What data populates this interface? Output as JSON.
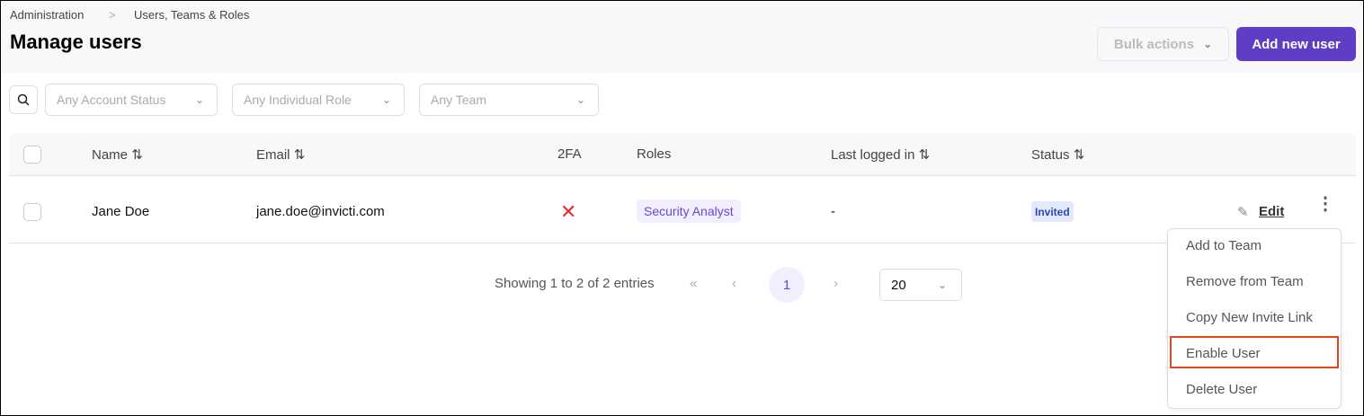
{
  "breadcrumb": {
    "items": [
      "Administration",
      "Users, Teams & Roles"
    ],
    "separator": ">"
  },
  "header": {
    "title": "Manage users",
    "bulk_actions": "Bulk actions",
    "add_user": "Add new user"
  },
  "filters": [
    {
      "placeholder": "Any Account Status"
    },
    {
      "placeholder": "Any Individual Role"
    },
    {
      "placeholder": "Any Team"
    }
  ],
  "table": {
    "columns": [
      "Name",
      "Email",
      "2FA",
      "Roles",
      "Last logged in",
      "Status"
    ],
    "rows": [
      {
        "name": "Jane Doe",
        "email": "jane.doe@invicti.com",
        "twofa": "✕",
        "role": "Security Analyst",
        "last_logged_in": "-",
        "status": "Invited",
        "edit": "Edit"
      }
    ]
  },
  "menu": {
    "items": [
      "Add to Team",
      "Remove from Team",
      "Copy New Invite Link",
      "Enable User",
      "Delete User"
    ],
    "highlighted": "Enable User"
  },
  "pagination": {
    "summary": "Showing 1 to 2 of 2 entries",
    "current_page": "1",
    "page_size": "20"
  },
  "colors": {
    "accent": "#5f3dc4",
    "highlight": "#e8431e",
    "error": "#e03131"
  }
}
